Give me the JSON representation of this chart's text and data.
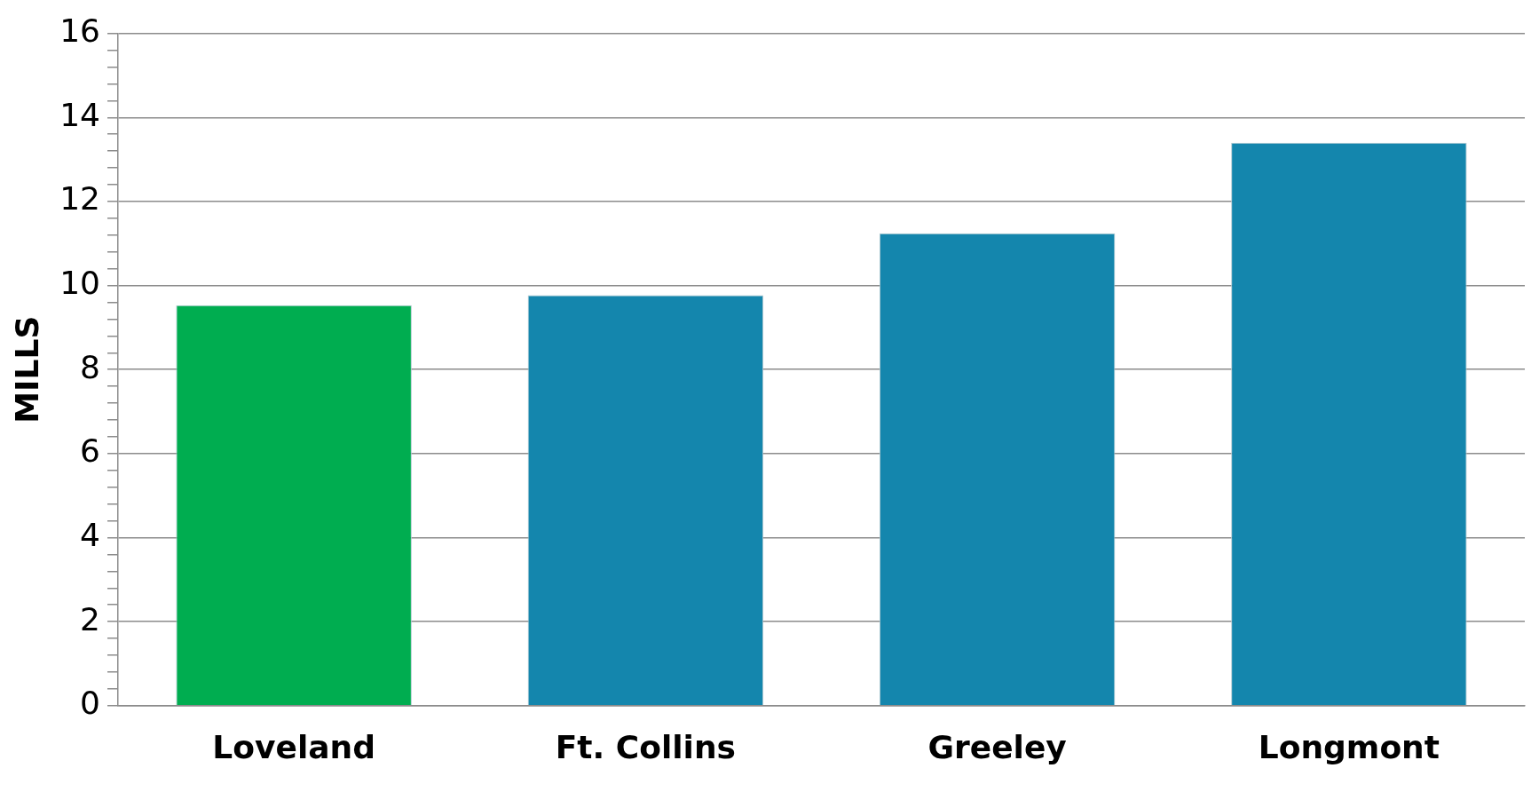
{
  "chart_data": {
    "type": "bar",
    "ylabel": "MILLS",
    "categories": [
      "Loveland",
      "Ft. Collins",
      "Greeley",
      "Longmont"
    ],
    "values": [
      9.53,
      9.77,
      11.24,
      13.4
    ],
    "colors": [
      "#00ad50",
      "#1486ad",
      "#1486ad",
      "#1486ad"
    ],
    "ylim": [
      0,
      16
    ],
    "yticks": [
      0,
      {
        "value": 0.4,
        "label": null
      },
      {
        "value": 0.8,
        "label": null
      },
      {
        "value": 1.2,
        "label": null
      },
      {
        "value": 1.6,
        "label": null
      },
      2,
      {
        "value": 2.4,
        "label": null
      },
      {
        "value": 2.8,
        "label": null
      },
      {
        "value": 3.2,
        "label": null
      },
      {
        "value": 3.6,
        "label": null
      },
      4,
      {
        "value": 4.4,
        "label": null
      },
      {
        "value": 4.8,
        "label": null
      },
      {
        "value": 5.2,
        "label": null
      },
      {
        "value": 5.6,
        "label": null
      },
      6,
      {
        "value": 6.4,
        "label": null
      },
      {
        "value": 6.8,
        "label": null
      },
      {
        "value": 7.2,
        "label": null
      },
      {
        "value": 7.6,
        "label": null
      },
      8,
      {
        "value": 8.4,
        "label": null
      },
      {
        "value": 8.8,
        "label": null
      },
      {
        "value": 9.2,
        "label": null
      },
      {
        "value": 9.6,
        "label": null
      },
      10,
      {
        "value": 10.4,
        "label": null
      },
      {
        "value": 10.8,
        "label": null
      },
      {
        "value": 11.2,
        "label": null
      },
      {
        "value": 11.6,
        "label": null
      },
      12,
      {
        "value": 12.4,
        "label": null
      },
      {
        "value": 12.8,
        "label": null
      },
      {
        "value": 13.2,
        "label": null
      },
      {
        "value": 13.6,
        "label": null
      },
      14,
      {
        "value": 14.4,
        "label": null
      },
      {
        "value": 14.8,
        "label": null
      },
      {
        "value": 15.2,
        "label": null
      },
      {
        "value": 15.6,
        "label": null
      },
      16
    ],
    "grid": "y",
    "legend": false
  }
}
